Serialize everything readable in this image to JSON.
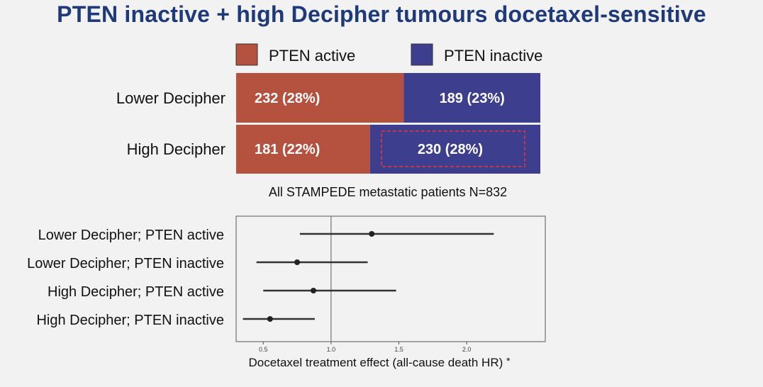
{
  "title": "PTEN inactive + high Decipher tumours docetaxel-sensitive",
  "colors": {
    "title": "#1f3a78",
    "pten_active": "#b5513f",
    "pten_inactive": "#3e3e8e",
    "highlight_border": "#c0394b"
  },
  "chart_data": [
    {
      "type": "bar",
      "subtype": "stacked-horizontal",
      "categories": [
        "Lower Decipher",
        "High Decipher"
      ],
      "series": [
        {
          "name": "PTEN  active",
          "values": [
            232,
            181
          ],
          "labels": [
            "232 (28%)",
            "181 (22%)"
          ],
          "color": "#b5513f"
        },
        {
          "name": "PTEN  inactive",
          "values": [
            189,
            230
          ],
          "labels": [
            "189 (23%)",
            "230 (28%)"
          ],
          "color": "#3e3e8e"
        }
      ],
      "highlighted": {
        "category": "High Decipher",
        "series": "PTEN  inactive"
      },
      "xlabel": "All STAMPEDE metastatic patients N=832",
      "legend": "top"
    },
    {
      "type": "scatter",
      "subtype": "forest-plot",
      "categories": [
        "Lower Decipher; PTEN active",
        "Lower Decipher; PTEN inactive",
        "High Decipher; PTEN active",
        "High Decipher; PTEN inactive"
      ],
      "estimates": [
        1.3,
        0.75,
        0.87,
        0.55
      ],
      "ci_low": [
        0.77,
        0.45,
        0.5,
        0.35
      ],
      "ci_high": [
        2.2,
        1.27,
        1.48,
        0.88
      ],
      "reference_line": 1.0,
      "xticks": [
        "0.5",
        "1.0",
        "1.5",
        "2.0"
      ],
      "xlim": [
        0.3,
        2.58
      ],
      "xlabel": "Docetaxel treatment effect (all-cause death HR)",
      "xlabel_note": "*",
      "grid": false
    }
  ]
}
